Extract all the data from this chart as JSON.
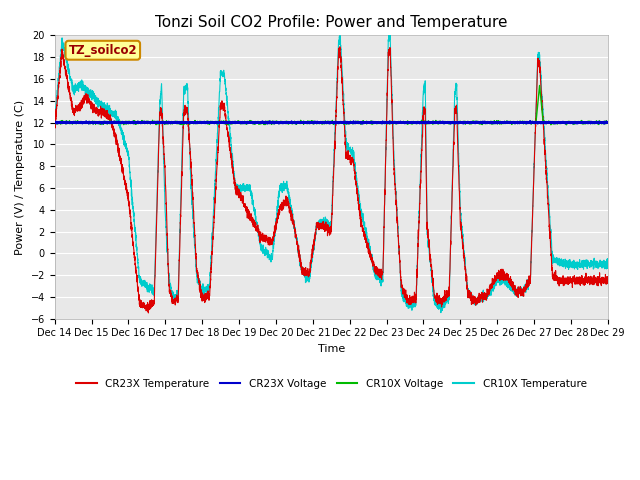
{
  "title": "Tonzi Soil CO2 Profile: Power and Temperature",
  "xlabel": "Time",
  "ylabel": "Power (V) / Temperature (C)",
  "ylim": [
    -6,
    20
  ],
  "yticks": [
    -6,
    -4,
    -2,
    0,
    2,
    4,
    6,
    8,
    10,
    12,
    14,
    16,
    18,
    20
  ],
  "xtick_labels": [
    "Dec 14",
    "Dec 15",
    "Dec 16",
    "Dec 17",
    "Dec 18",
    "Dec 19",
    "Dec 20",
    "Dec 21",
    "Dec 22",
    "Dec 23",
    "Dec 24",
    "Dec 25",
    "Dec 26",
    "Dec 27",
    "Dec 28",
    "Dec 29"
  ],
  "legend_labels": [
    "CR23X Temperature",
    "CR23X Voltage",
    "CR10X Voltage",
    "CR10X Temperature"
  ],
  "box_label": "TZ_soilco2",
  "box_bg": "#ffff99",
  "box_edge": "#cc8800",
  "cr23x_temp_color": "#dd0000",
  "cr23x_volt_color": "#0000cc",
  "cr10x_volt_color": "#00bb00",
  "cr10x_temp_color": "#00cccc",
  "fig_bg": "#ffffff",
  "plot_bg": "#e8e8e8",
  "grid_color": "#ffffff",
  "voltage_level": 12.0,
  "title_fontsize": 11,
  "label_fontsize": 8,
  "tick_fontsize": 7
}
